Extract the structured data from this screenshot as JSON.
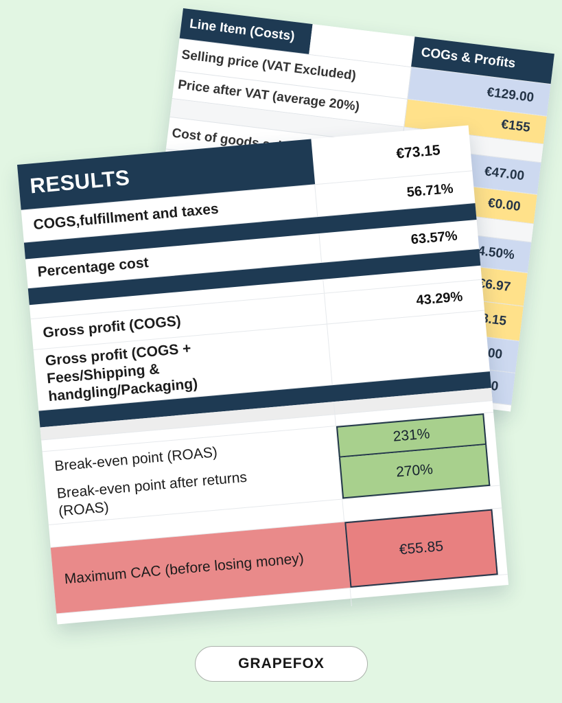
{
  "page": {
    "background": "#e2f6e3",
    "brand_pill": "GRAPEFOX"
  },
  "colors": {
    "navy": "#1e3a53",
    "cell_blue": "#cdd9f0",
    "cell_yellow": "#ffe18a",
    "cell_green": "#a8d08d",
    "cell_red": "#e88080",
    "cell_pink": "#e98a8a"
  },
  "cost_sheet": {
    "header_left": "Line Item (Costs)",
    "header_right": "COGs & Profits",
    "rows": [
      {
        "label": "Selling price (VAT Excluded)",
        "value": "€129.00",
        "fill": "blue"
      },
      {
        "label": "Price after VAT (average 20%)",
        "value": "€155",
        "fill": "yellow"
      },
      {
        "label": "",
        "value": "",
        "fill": "none"
      },
      {
        "label": "Cost of goods sold",
        "value": "€47.00",
        "fill": "blue"
      },
      {
        "label": "",
        "value": "€0.00",
        "fill": "yellow"
      },
      {
        "label": "",
        "value": "",
        "fill": "none"
      },
      {
        "label": "",
        "value": "4.50%",
        "fill": "blue"
      },
      {
        "label": "",
        "value": "€6.97",
        "fill": "yellow"
      },
      {
        "label": "",
        "value": "€8.15",
        "fill": "yellow"
      },
      {
        "label": "",
        "value": "00",
        "fill": "blue"
      },
      {
        "label": "",
        "value": "0",
        "fill": "blue"
      }
    ]
  },
  "results_sheet": {
    "title": "RESULTS",
    "header_value": "€73.15",
    "rows": [
      {
        "label": "COGS,fulfillment and taxes",
        "value": "56.71%"
      },
      {
        "label": "Percentage cost",
        "value": "63.57%"
      },
      {
        "label": "Gross profit (COGS)",
        "value": "43.29%"
      },
      {
        "label": "Gross profit (COGS + Fees/Shipping & handgling/Packaging)",
        "value": ""
      },
      {
        "label": "Break-even point (ROAS)",
        "value": "231%"
      },
      {
        "label": "Break-even point after returns (ROAS)",
        "value": "270%"
      },
      {
        "label": "Maximum CAC (before losing money)",
        "value": "€55.85"
      }
    ]
  }
}
